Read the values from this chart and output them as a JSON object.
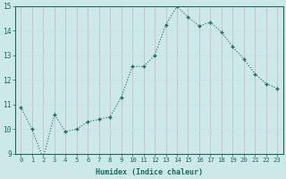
{
  "x": [
    0,
    1,
    2,
    3,
    4,
    5,
    6,
    7,
    8,
    9,
    10,
    11,
    12,
    13,
    14,
    15,
    16,
    17,
    18,
    19,
    20,
    21,
    22,
    23
  ],
  "y": [
    10.9,
    10.0,
    8.8,
    10.6,
    9.9,
    10.0,
    10.3,
    10.4,
    10.5,
    11.3,
    12.55,
    12.55,
    13.0,
    14.25,
    15.0,
    14.55,
    14.2,
    14.35,
    13.95,
    13.35,
    12.85,
    12.25,
    11.85,
    11.65
  ],
  "xlabel": "Humidex (Indice chaleur)",
  "ylim": [
    9,
    15
  ],
  "xlim": [
    -0.5,
    23.5
  ],
  "yticks": [
    9,
    10,
    11,
    12,
    13,
    14,
    15
  ],
  "xticks": [
    0,
    1,
    2,
    3,
    4,
    5,
    6,
    7,
    8,
    9,
    10,
    11,
    12,
    13,
    14,
    15,
    16,
    17,
    18,
    19,
    20,
    21,
    22,
    23
  ],
  "line_color": "#1b6b5a",
  "marker_color": "#1b6b5a",
  "bg_color": "#cce8e8",
  "grid_color_major": "#c8b4b4",
  "grid_color_minor": "#c8e0e0",
  "spine_color": "#1b6b5a",
  "label_color": "#1b6b5a",
  "tick_fontsize": 5.2,
  "xlabel_fontsize": 6.0
}
